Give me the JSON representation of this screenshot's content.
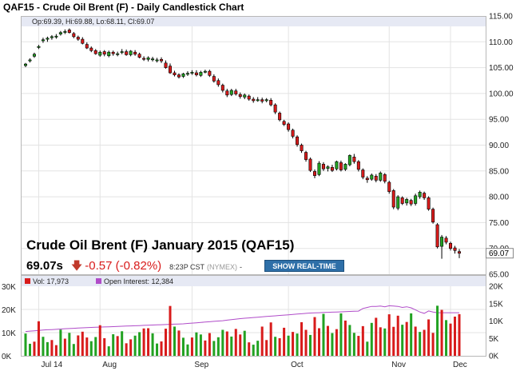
{
  "header": {
    "title": "QAF15 - Crude Oil Brent (F) - Daily Candlestick Chart",
    "ohlc_text": "Op:69.39, Hi:69.88, Lo:68.11, Cl:69.07"
  },
  "quote": {
    "name": "Crude Oil Brent (F) January 2015 (QAF15)",
    "last": "69.07s",
    "change": "-0.57 (-0.82%)",
    "time": "8:23P CST",
    "exchange": "(NYMEX)",
    "dash": "-",
    "button_label": "SHOW REAL-TIME"
  },
  "volume_panel": {
    "vol_label": "Vol: 17,973",
    "oi_label": "Open Interest: 12,384"
  },
  "colors": {
    "up": "#22a222",
    "down": "#d81b1b",
    "open_interest_line": "#b04cc9",
    "info_bar": "#e6e9f4",
    "last_price_box": "#ffffff"
  },
  "chart_data": {
    "type": "candlestick",
    "y_axis": {
      "ticks": [
        "115.00",
        "110.00",
        "105.00",
        "100.00",
        "95.00",
        "90.00",
        "85.00",
        "80.00",
        "75.00",
        "70.00",
        "65.00"
      ],
      "range": [
        65,
        115
      ],
      "side": "right"
    },
    "x_axis": {
      "labels": [
        "Jul 14",
        "Aug",
        "Sep",
        "Oct",
        "Nov",
        "Dec"
      ]
    },
    "last_price_label": "69.07",
    "volume_axis": {
      "ticks": [
        "30K",
        "20K",
        "10K",
        "0K"
      ],
      "range": [
        0,
        30000
      ]
    },
    "open_interest_axis": {
      "ticks": [
        "20K",
        "15K",
        "10K",
        "5K",
        "0K"
      ],
      "range": [
        0,
        20000
      ]
    },
    "candles": [
      [
        105.4,
        105.9,
        105.1,
        105.7
      ],
      [
        106.3,
        106.8,
        106.0,
        106.5
      ],
      [
        107.2,
        107.9,
        106.9,
        107.6
      ],
      [
        108.9,
        109.4,
        108.6,
        109.1
      ],
      [
        110.2,
        110.8,
        109.8,
        110.4
      ],
      [
        110.5,
        111.0,
        110.0,
        110.7
      ],
      [
        110.8,
        111.3,
        110.4,
        111.0
      ],
      [
        111.0,
        111.5,
        110.6,
        111.1
      ],
      [
        111.5,
        112.1,
        111.2,
        111.8
      ],
      [
        111.9,
        112.4,
        111.5,
        112.0
      ],
      [
        112.3,
        112.6,
        111.6,
        111.8
      ],
      [
        111.6,
        111.9,
        110.7,
        111.0
      ],
      [
        110.9,
        111.2,
        110.2,
        110.5
      ],
      [
        110.5,
        110.9,
        109.5,
        109.7
      ],
      [
        109.5,
        109.9,
        108.6,
        108.8
      ],
      [
        108.8,
        109.1,
        108.0,
        108.3
      ],
      [
        108.3,
        108.6,
        107.5,
        107.7
      ],
      [
        107.4,
        108.3,
        107.1,
        108.0
      ],
      [
        108.1,
        108.4,
        107.2,
        107.6
      ],
      [
        107.3,
        108.3,
        107.0,
        108.0
      ],
      [
        108.0,
        108.3,
        107.3,
        107.7
      ],
      [
        107.7,
        108.1,
        107.2,
        107.7
      ],
      [
        108.0,
        108.6,
        107.6,
        108.1
      ],
      [
        108.1,
        108.5,
        107.3,
        107.5
      ],
      [
        107.5,
        108.4,
        107.2,
        108.2
      ],
      [
        108.0,
        108.4,
        107.3,
        107.6
      ],
      [
        107.6,
        107.9,
        106.8,
        107.0
      ],
      [
        106.8,
        107.2,
        106.3,
        106.7
      ],
      [
        106.6,
        107.2,
        106.2,
        106.9
      ],
      [
        106.7,
        107.1,
        106.2,
        106.7
      ],
      [
        106.4,
        106.9,
        106.0,
        106.5
      ],
      [
        106.6,
        107.0,
        105.9,
        106.3
      ],
      [
        105.9,
        106.4,
        104.8,
        105.0
      ],
      [
        105.3,
        105.8,
        103.8,
        104.0
      ],
      [
        104.0,
        104.4,
        103.3,
        103.6
      ],
      [
        103.6,
        103.9,
        102.9,
        103.2
      ],
      [
        103.3,
        104.0,
        103.0,
        103.8
      ],
      [
        103.8,
        104.3,
        103.4,
        103.9
      ],
      [
        104.0,
        104.5,
        103.6,
        104.1
      ],
      [
        104.0,
        104.5,
        103.3,
        103.6
      ],
      [
        103.5,
        104.4,
        103.2,
        104.1
      ],
      [
        104.1,
        104.6,
        103.9,
        104.3
      ],
      [
        104.3,
        104.6,
        103.2,
        103.5
      ],
      [
        103.3,
        103.7,
        102.1,
        102.4
      ],
      [
        102.5,
        102.9,
        101.3,
        101.7
      ],
      [
        101.6,
        101.9,
        100.2,
        100.6
      ],
      [
        100.5,
        100.9,
        99.3,
        99.7
      ],
      [
        99.8,
        100.9,
        99.5,
        100.6
      ],
      [
        100.5,
        100.9,
        99.6,
        99.9
      ],
      [
        99.8,
        100.2,
        99.0,
        99.4
      ],
      [
        99.3,
        100.0,
        98.9,
        99.7
      ],
      [
        99.5,
        99.8,
        98.6,
        98.9
      ],
      [
        98.9,
        99.3,
        98.2,
        98.6
      ],
      [
        98.6,
        99.3,
        98.4,
        98.8
      ],
      [
        98.8,
        99.2,
        98.1,
        98.5
      ],
      [
        98.6,
        99.1,
        98.3,
        98.8
      ],
      [
        98.7,
        99.1,
        97.5,
        97.8
      ],
      [
        97.8,
        98.1,
        96.0,
        96.4
      ],
      [
        96.2,
        96.5,
        94.6,
        94.9
      ],
      [
        94.6,
        94.9,
        93.7,
        94.0
      ],
      [
        94.1,
        94.4,
        92.6,
        93.0
      ],
      [
        92.9,
        93.2,
        91.3,
        91.7
      ],
      [
        91.6,
        91.9,
        89.7,
        90.1
      ],
      [
        90.0,
        90.3,
        88.5,
        88.9
      ],
      [
        88.6,
        88.9,
        86.8,
        87.2
      ],
      [
        87.3,
        87.6,
        84.8,
        85.1
      ],
      [
        84.9,
        85.3,
        83.6,
        84.1
      ],
      [
        84.3,
        86.9,
        84.0,
        86.5
      ],
      [
        86.3,
        86.7,
        85.0,
        85.4
      ],
      [
        85.5,
        86.1,
        84.9,
        85.8
      ],
      [
        85.7,
        86.2,
        84.8,
        85.1
      ],
      [
        85.4,
        87.0,
        85.1,
        86.8
      ],
      [
        86.6,
        87.0,
        84.9,
        85.2
      ],
      [
        85.3,
        86.5,
        85.0,
        86.3
      ],
      [
        86.2,
        88.2,
        85.9,
        88.0
      ],
      [
        87.7,
        88.3,
        86.4,
        86.8
      ],
      [
        86.8,
        87.1,
        84.9,
        85.3
      ],
      [
        85.2,
        85.5,
        83.4,
        83.8
      ],
      [
        83.6,
        84.0,
        82.7,
        83.3
      ],
      [
        83.4,
        84.5,
        83.1,
        84.2
      ],
      [
        84.0,
        84.4,
        82.8,
        83.2
      ],
      [
        83.2,
        84.9,
        82.9,
        84.6
      ],
      [
        84.3,
        84.6,
        82.6,
        83.0
      ],
      [
        82.8,
        83.1,
        80.6,
        81.0
      ],
      [
        81.2,
        81.5,
        77.6,
        78.0
      ],
      [
        77.8,
        80.3,
        77.4,
        80.0
      ],
      [
        79.8,
        80.1,
        78.4,
        78.7
      ],
      [
        78.8,
        79.8,
        78.3,
        79.5
      ],
      [
        79.3,
        79.6,
        78.2,
        78.6
      ],
      [
        78.7,
        80.6,
        78.3,
        80.2
      ],
      [
        80.0,
        81.2,
        79.6,
        80.9
      ],
      [
        80.7,
        81.0,
        79.4,
        79.8
      ],
      [
        79.8,
        80.1,
        77.3,
        77.6
      ],
      [
        77.6,
        77.9,
        74.8,
        75.1
      ],
      [
        74.6,
        74.9,
        70.0,
        70.3
      ],
      [
        70.4,
        72.6,
        68.0,
        72.2
      ],
      [
        72.0,
        72.4,
        70.8,
        71.2
      ],
      [
        71.0,
        71.3,
        69.6,
        70.0
      ],
      [
        70.1,
        70.5,
        69.0,
        69.6
      ],
      [
        69.39,
        69.88,
        68.11,
        69.07
      ]
    ],
    "volume": [
      [
        9600,
        "up"
      ],
      [
        5200,
        "up"
      ],
      [
        6100,
        "down"
      ],
      [
        14900,
        "down"
      ],
      [
        8200,
        "up"
      ],
      [
        5900,
        "up"
      ],
      [
        6800,
        "down"
      ],
      [
        4600,
        "down"
      ],
      [
        11300,
        "up"
      ],
      [
        7400,
        "down"
      ],
      [
        9900,
        "up"
      ],
      [
        5100,
        "up"
      ],
      [
        8800,
        "down"
      ],
      [
        10400,
        "down"
      ],
      [
        7900,
        "down"
      ],
      [
        6300,
        "up"
      ],
      [
        8100,
        "up"
      ],
      [
        13200,
        "down"
      ],
      [
        7600,
        "down"
      ],
      [
        4100,
        "up"
      ],
      [
        9300,
        "up"
      ],
      [
        8500,
        "down"
      ],
      [
        10600,
        "up"
      ],
      [
        5400,
        "down"
      ],
      [
        7100,
        "down"
      ],
      [
        8700,
        "up"
      ],
      [
        10200,
        "up"
      ],
      [
        11800,
        "down"
      ],
      [
        11900,
        "down"
      ],
      [
        9700,
        "up"
      ],
      [
        5300,
        "up"
      ],
      [
        6200,
        "down"
      ],
      [
        11700,
        "down"
      ],
      [
        21500,
        "down"
      ],
      [
        12600,
        "up"
      ],
      [
        10900,
        "down"
      ],
      [
        7800,
        "up"
      ],
      [
        4900,
        "up"
      ],
      [
        7900,
        "down"
      ],
      [
        10100,
        "up"
      ],
      [
        9200,
        "up"
      ],
      [
        6600,
        "down"
      ],
      [
        9800,
        "down"
      ],
      [
        6400,
        "up"
      ],
      [
        8000,
        "up"
      ],
      [
        11200,
        "up"
      ],
      [
        10500,
        "down"
      ],
      [
        8300,
        "up"
      ],
      [
        11600,
        "down"
      ],
      [
        9200,
        "down"
      ],
      [
        10800,
        "up"
      ],
      [
        5800,
        "down"
      ],
      [
        4800,
        "up"
      ],
      [
        6500,
        "up"
      ],
      [
        12600,
        "down"
      ],
      [
        6800,
        "down"
      ],
      [
        14400,
        "down"
      ],
      [
        8200,
        "up"
      ],
      [
        7600,
        "down"
      ],
      [
        12100,
        "down"
      ],
      [
        8700,
        "up"
      ],
      [
        10300,
        "down"
      ],
      [
        9600,
        "up"
      ],
      [
        14500,
        "down"
      ],
      [
        11200,
        "down"
      ],
      [
        9000,
        "up"
      ],
      [
        16700,
        "down"
      ],
      [
        11900,
        "down"
      ],
      [
        18100,
        "up"
      ],
      [
        12900,
        "down"
      ],
      [
        9800,
        "up"
      ],
      [
        11500,
        "down"
      ],
      [
        18300,
        "up"
      ],
      [
        15200,
        "down"
      ],
      [
        13300,
        "up"
      ],
      [
        9900,
        "up"
      ],
      [
        8600,
        "down"
      ],
      [
        12800,
        "down"
      ],
      [
        6100,
        "up"
      ],
      [
        14200,
        "up"
      ],
      [
        16400,
        "down"
      ],
      [
        12300,
        "down"
      ],
      [
        11800,
        "up"
      ],
      [
        17900,
        "down"
      ],
      [
        12500,
        "down"
      ],
      [
        17300,
        "down"
      ],
      [
        13400,
        "up"
      ],
      [
        14600,
        "down"
      ],
      [
        18300,
        "up"
      ],
      [
        12600,
        "down"
      ],
      [
        10300,
        "up"
      ],
      [
        11200,
        "down"
      ],
      [
        15700,
        "down"
      ],
      [
        9900,
        "down"
      ],
      [
        21600,
        "up"
      ],
      [
        19800,
        "down"
      ],
      [
        15400,
        "up"
      ],
      [
        13900,
        "down"
      ],
      [
        16900,
        "down"
      ],
      [
        17973,
        "down"
      ]
    ],
    "open_interest": [
      7000,
      7100,
      7200,
      7300,
      7400,
      7500,
      7550,
      7600,
      7700,
      7800,
      7850,
      7900,
      8000,
      8050,
      8100,
      8150,
      8200,
      8250,
      8300,
      8350,
      8400,
      8450,
      8500,
      8550,
      8600,
      8650,
      8700,
      8750,
      8800,
      8850,
      8900,
      8950,
      9000,
      9050,
      9100,
      9150,
      9200,
      9300,
      9400,
      9500,
      9600,
      9700,
      9800,
      9900,
      10000,
      10100,
      10250,
      10400,
      10550,
      10700,
      10800,
      10900,
      11000,
      11100,
      11200,
      11300,
      11400,
      11500,
      11600,
      11700,
      11800,
      11900,
      12000,
      12100,
      12200,
      12300,
      12350,
      12400,
      12450,
      12500,
      12550,
      12600,
      12650,
      12700,
      12750,
      12800,
      12850,
      13600,
      13900,
      14200,
      14200,
      14300,
      14100,
      14400,
      14300,
      14200,
      13900,
      14100,
      13800,
      13200,
      12600,
      12200,
      12900,
      12600,
      12384,
      12384,
      12384,
      12384,
      12384,
      12384
    ]
  }
}
